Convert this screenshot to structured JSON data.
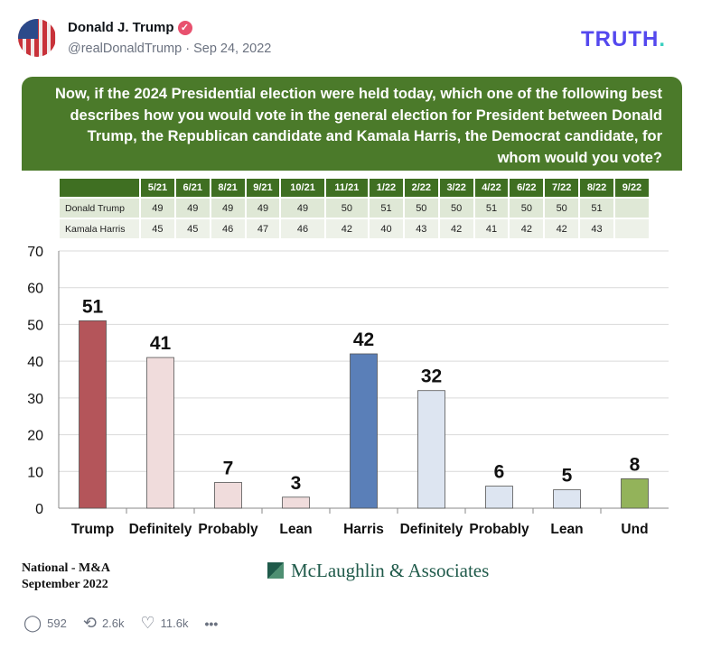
{
  "post": {
    "author": "Donald J. Trump",
    "handle": "@realDonaldTrump · Sep 24, 2022",
    "brand": "TRUTH",
    "brand_dot": "."
  },
  "question": "Now, if the 2024 Presidential election were held today, which one of the following best describes how you would vote in the general election for President between Donald Trump, the Republican candidate and Kamala Harris, the Democrat candidate, for whom would you vote?",
  "trend_table": {
    "headers": [
      "5/21",
      "6/21",
      "8/21",
      "9/21",
      "10/21",
      "11/21",
      "1/22",
      "2/22",
      "3/22",
      "4/22",
      "6/22",
      "7/22",
      "8/22",
      "9/22"
    ],
    "rows": [
      {
        "label": "Donald Trump",
        "values": [
          "49",
          "49",
          "49",
          "49",
          "49",
          "50",
          "51",
          "50",
          "50",
          "51",
          "50",
          "50",
          "51",
          ""
        ]
      },
      {
        "label": "Kamala Harris",
        "values": [
          "45",
          "45",
          "46",
          "47",
          "46",
          "42",
          "40",
          "43",
          "42",
          "41",
          "42",
          "42",
          "43",
          ""
        ]
      }
    ]
  },
  "chart_data": {
    "type": "bar",
    "categories": [
      "Trump",
      "Definitely",
      "Probably",
      "Lean",
      "Harris",
      "Definitely",
      "Probably",
      "Lean",
      "Und"
    ],
    "values": [
      51,
      41,
      7,
      3,
      42,
      32,
      6,
      5,
      8
    ],
    "colors": [
      "#b4555a",
      "#f0dcdc",
      "#f0dcdc",
      "#f0dcdc",
      "#5a7fb8",
      "#dde5f1",
      "#dde5f1",
      "#dde5f1",
      "#93b35a"
    ],
    "ylim": [
      0,
      70
    ],
    "yticks": [
      0,
      10,
      20,
      30,
      40,
      50,
      60,
      70
    ],
    "grid": true
  },
  "footer": {
    "source_line1": "National - M&A",
    "source_line2": "September 2022",
    "pollster": "McLaughlin & Associates"
  },
  "actions": {
    "replies": "592",
    "retruths": "2.6k",
    "likes": "11.6k",
    "more": "•••"
  }
}
